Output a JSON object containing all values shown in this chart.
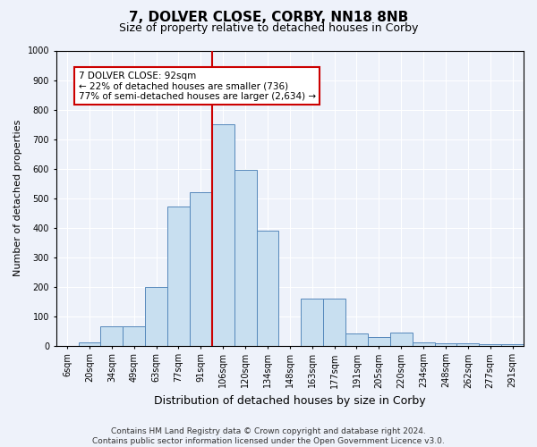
{
  "title": "7, DOLVER CLOSE, CORBY, NN18 8NB",
  "subtitle": "Size of property relative to detached houses in Corby",
  "xlabel": "Distribution of detached houses by size in Corby",
  "ylabel": "Number of detached properties",
  "footer_line1": "Contains HM Land Registry data © Crown copyright and database right 2024.",
  "footer_line2": "Contains public sector information licensed under the Open Government Licence v3.0.",
  "categories": [
    "6sqm",
    "20sqm",
    "34sqm",
    "49sqm",
    "63sqm",
    "77sqm",
    "91sqm",
    "106sqm",
    "120sqm",
    "134sqm",
    "148sqm",
    "163sqm",
    "177sqm",
    "191sqm",
    "205sqm",
    "220sqm",
    "234sqm",
    "248sqm",
    "262sqm",
    "277sqm",
    "291sqm"
  ],
  "values": [
    0,
    12,
    65,
    65,
    200,
    470,
    520,
    750,
    595,
    390,
    0,
    160,
    160,
    40,
    28,
    45,
    12,
    8,
    8,
    5,
    5
  ],
  "bar_color": "#c8dff0",
  "bar_edge_color": "#5588bb",
  "annotation_text": "7 DOLVER CLOSE: 92sqm\n← 22% of detached houses are smaller (736)\n77% of semi-detached houses are larger (2,634) →",
  "annotation_box_color": "#ffffff",
  "annotation_box_edge": "#cc0000",
  "vline_index": 6.5,
  "vline_color": "#cc0000",
  "ylim": [
    0,
    1000
  ],
  "yticks": [
    0,
    100,
    200,
    300,
    400,
    500,
    600,
    700,
    800,
    900,
    1000
  ],
  "background_color": "#eef2fa",
  "grid_color": "#ffffff",
  "title_fontsize": 11,
  "subtitle_fontsize": 9,
  "xlabel_fontsize": 9,
  "ylabel_fontsize": 8,
  "tick_fontsize": 7,
  "annotation_fontsize": 7.5,
  "footer_fontsize": 6.5
}
